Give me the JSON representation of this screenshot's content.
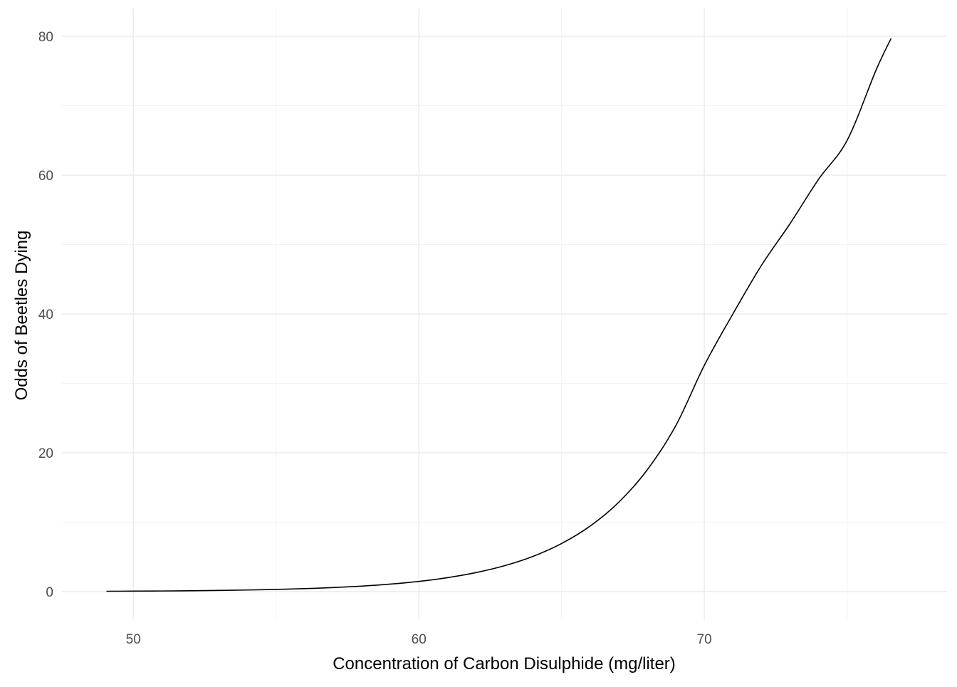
{
  "chart_data": {
    "type": "line",
    "title": "",
    "xlabel": "Concentration of Carbon Disulphide (mg/liter)",
    "ylabel": "Odds of Beetles Dying",
    "xlim": [
      47.5,
      78.5
    ],
    "ylim": [
      -4,
      84
    ],
    "x_ticks": [
      50,
      60,
      70
    ],
    "x_minor_ticks": [
      55,
      65,
      75
    ],
    "y_ticks": [
      0,
      20,
      40,
      60,
      80
    ],
    "y_minor_ticks": [
      10,
      30,
      50,
      70
    ],
    "grid": true,
    "legend": "none",
    "series": [
      {
        "color": "#000000",
        "x": [
          49.06,
          50,
          51,
          52,
          53,
          54,
          55,
          56,
          57,
          58,
          59,
          60,
          61,
          62,
          63,
          64,
          65,
          66,
          67,
          68,
          69,
          70,
          71,
          72,
          73,
          74,
          75,
          76,
          76.54
        ],
        "values": [
          0.05,
          0.07,
          0.09,
          0.12,
          0.17,
          0.23,
          0.31,
          0.43,
          0.58,
          0.79,
          1.08,
          1.47,
          2.01,
          2.74,
          3.73,
          5.08,
          6.93,
          9.44,
          12.87,
          17.54,
          23.91,
          32.6,
          40,
          47,
          53,
          59.4,
          65,
          75,
          79.7
        ]
      }
    ]
  }
}
